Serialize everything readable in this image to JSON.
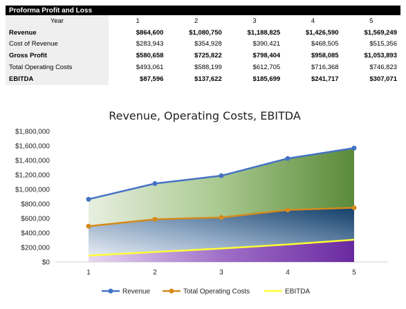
{
  "table": {
    "title": "Proforma Profit and Loss",
    "header_label": "Year",
    "years": [
      "1",
      "2",
      "3",
      "4",
      "5"
    ],
    "rows": [
      {
        "label": "Revenue",
        "bold": true,
        "values": [
          "$864,600",
          "$1,080,750",
          "$1,188,825",
          "$1,426,590",
          "$1,569,249"
        ]
      },
      {
        "label": "Cost of Revenue",
        "bold": false,
        "values": [
          "$283,943",
          "$354,928",
          "$390,421",
          "$468,505",
          "$515,356"
        ]
      },
      {
        "label": "Gross Profit",
        "bold": true,
        "values": [
          "$580,658",
          "$725,822",
          "$798,404",
          "$958,085",
          "$1,053,893"
        ]
      },
      {
        "label": "Total Operating Costs",
        "bold": false,
        "values": [
          "$493,061",
          "$588,199",
          "$612,705",
          "$716,368",
          "$746,823"
        ]
      },
      {
        "label": "EBITDA",
        "bold": true,
        "values": [
          "$87,596",
          "$137,622",
          "$185,699",
          "$241,717",
          "$307,071"
        ]
      }
    ]
  },
  "chart_data": {
    "type": "area",
    "title": "Revenue, Operating Costs, EBITDA",
    "x": [
      "1",
      "2",
      "3",
      "4",
      "5"
    ],
    "ylim": [
      0,
      1800000
    ],
    "yticks": [
      0,
      200000,
      400000,
      600000,
      800000,
      1000000,
      1200000,
      1400000,
      1600000,
      1800000
    ],
    "ytick_labels": [
      "$0",
      "$200,000",
      "$400,000",
      "$600,000",
      "$800,000",
      "$1,000,000",
      "$1,200,000",
      "$1,400,000",
      "$1,600,000",
      "$1,800,000"
    ],
    "grid": false,
    "legend_position": "bottom",
    "series": [
      {
        "name": "Revenue",
        "values": [
          864600,
          1080750,
          1188825,
          1426590,
          1569249
        ],
        "color": "#4472c4",
        "marker": true
      },
      {
        "name": "Total Operating Costs",
        "values": [
          493061,
          588199,
          612705,
          716368,
          746823
        ],
        "color": "#d48a1c",
        "marker": true
      },
      {
        "name": "EBITDA",
        "values": [
          87596,
          137622,
          185699,
          241717,
          307071
        ],
        "color": "#ffff33",
        "marker": false
      }
    ]
  }
}
